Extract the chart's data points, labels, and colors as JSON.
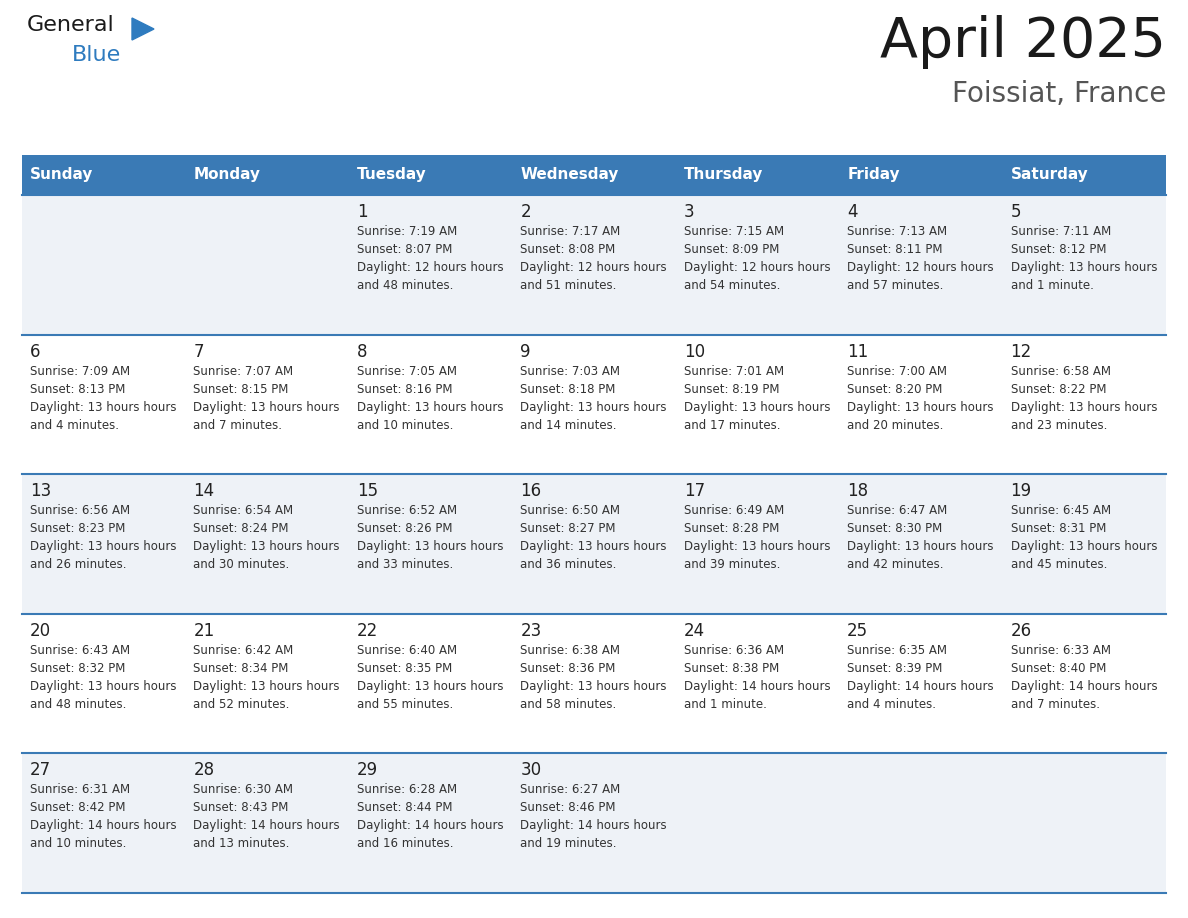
{
  "title": "April 2025",
  "subtitle": "Foissiat, France",
  "header_bg_color": "#3a7ab5",
  "header_text_color": "#ffffff",
  "day_names": [
    "Sunday",
    "Monday",
    "Tuesday",
    "Wednesday",
    "Thursday",
    "Friday",
    "Saturday"
  ],
  "row_odd_bg": "#eef2f7",
  "row_even_bg": "#ffffff",
  "cell_border_color": "#3a7ab5",
  "day_num_color": "#222222",
  "day_text_color": "#333333",
  "logo_general_color": "#1a1a1a",
  "logo_blue_color": "#2e7bbf",
  "title_color": "#1a1a1a",
  "subtitle_color": "#555555",
  "weeks": [
    [
      {
        "day": "",
        "sunrise": "",
        "sunset": "",
        "daylight": ""
      },
      {
        "day": "",
        "sunrise": "",
        "sunset": "",
        "daylight": ""
      },
      {
        "day": "1",
        "sunrise": "7:19 AM",
        "sunset": "8:07 PM",
        "daylight": "12 hours and 48 minutes."
      },
      {
        "day": "2",
        "sunrise": "7:17 AM",
        "sunset": "8:08 PM",
        "daylight": "12 hours and 51 minutes."
      },
      {
        "day": "3",
        "sunrise": "7:15 AM",
        "sunset": "8:09 PM",
        "daylight": "12 hours and 54 minutes."
      },
      {
        "day": "4",
        "sunrise": "7:13 AM",
        "sunset": "8:11 PM",
        "daylight": "12 hours and 57 minutes."
      },
      {
        "day": "5",
        "sunrise": "7:11 AM",
        "sunset": "8:12 PM",
        "daylight": "13 hours and 1 minute."
      }
    ],
    [
      {
        "day": "6",
        "sunrise": "7:09 AM",
        "sunset": "8:13 PM",
        "daylight": "13 hours and 4 minutes."
      },
      {
        "day": "7",
        "sunrise": "7:07 AM",
        "sunset": "8:15 PM",
        "daylight": "13 hours and 7 minutes."
      },
      {
        "day": "8",
        "sunrise": "7:05 AM",
        "sunset": "8:16 PM",
        "daylight": "13 hours and 10 minutes."
      },
      {
        "day": "9",
        "sunrise": "7:03 AM",
        "sunset": "8:18 PM",
        "daylight": "13 hours and 14 minutes."
      },
      {
        "day": "10",
        "sunrise": "7:01 AM",
        "sunset": "8:19 PM",
        "daylight": "13 hours and 17 minutes."
      },
      {
        "day": "11",
        "sunrise": "7:00 AM",
        "sunset": "8:20 PM",
        "daylight": "13 hours and 20 minutes."
      },
      {
        "day": "12",
        "sunrise": "6:58 AM",
        "sunset": "8:22 PM",
        "daylight": "13 hours and 23 minutes."
      }
    ],
    [
      {
        "day": "13",
        "sunrise": "6:56 AM",
        "sunset": "8:23 PM",
        "daylight": "13 hours and 26 minutes."
      },
      {
        "day": "14",
        "sunrise": "6:54 AM",
        "sunset": "8:24 PM",
        "daylight": "13 hours and 30 minutes."
      },
      {
        "day": "15",
        "sunrise": "6:52 AM",
        "sunset": "8:26 PM",
        "daylight": "13 hours and 33 minutes."
      },
      {
        "day": "16",
        "sunrise": "6:50 AM",
        "sunset": "8:27 PM",
        "daylight": "13 hours and 36 minutes."
      },
      {
        "day": "17",
        "sunrise": "6:49 AM",
        "sunset": "8:28 PM",
        "daylight": "13 hours and 39 minutes."
      },
      {
        "day": "18",
        "sunrise": "6:47 AM",
        "sunset": "8:30 PM",
        "daylight": "13 hours and 42 minutes."
      },
      {
        "day": "19",
        "sunrise": "6:45 AM",
        "sunset": "8:31 PM",
        "daylight": "13 hours and 45 minutes."
      }
    ],
    [
      {
        "day": "20",
        "sunrise": "6:43 AM",
        "sunset": "8:32 PM",
        "daylight": "13 hours and 48 minutes."
      },
      {
        "day": "21",
        "sunrise": "6:42 AM",
        "sunset": "8:34 PM",
        "daylight": "13 hours and 52 minutes."
      },
      {
        "day": "22",
        "sunrise": "6:40 AM",
        "sunset": "8:35 PM",
        "daylight": "13 hours and 55 minutes."
      },
      {
        "day": "23",
        "sunrise": "6:38 AM",
        "sunset": "8:36 PM",
        "daylight": "13 hours and 58 minutes."
      },
      {
        "day": "24",
        "sunrise": "6:36 AM",
        "sunset": "8:38 PM",
        "daylight": "14 hours and 1 minute."
      },
      {
        "day": "25",
        "sunrise": "6:35 AM",
        "sunset": "8:39 PM",
        "daylight": "14 hours and 4 minutes."
      },
      {
        "day": "26",
        "sunrise": "6:33 AM",
        "sunset": "8:40 PM",
        "daylight": "14 hours and 7 minutes."
      }
    ],
    [
      {
        "day": "27",
        "sunrise": "6:31 AM",
        "sunset": "8:42 PM",
        "daylight": "14 hours and 10 minutes."
      },
      {
        "day": "28",
        "sunrise": "6:30 AM",
        "sunset": "8:43 PM",
        "daylight": "14 hours and 13 minutes."
      },
      {
        "day": "29",
        "sunrise": "6:28 AM",
        "sunset": "8:44 PM",
        "daylight": "14 hours and 16 minutes."
      },
      {
        "day": "30",
        "sunrise": "6:27 AM",
        "sunset": "8:46 PM",
        "daylight": "14 hours and 19 minutes."
      },
      {
        "day": "",
        "sunrise": "",
        "sunset": "",
        "daylight": ""
      },
      {
        "day": "",
        "sunrise": "",
        "sunset": "",
        "daylight": ""
      },
      {
        "day": "",
        "sunrise": "",
        "sunset": "",
        "daylight": ""
      }
    ]
  ]
}
